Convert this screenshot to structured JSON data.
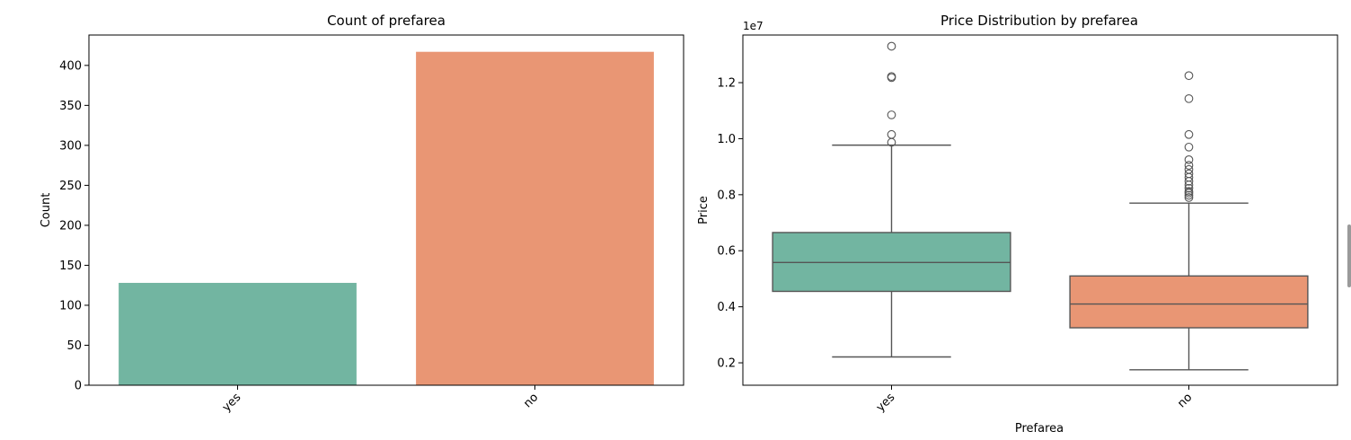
{
  "chart_data": [
    {
      "type": "bar",
      "title": "Count of prefarea",
      "xlabel": "",
      "ylabel": "Count",
      "categories": [
        "yes",
        "no"
      ],
      "values": [
        128,
        417
      ],
      "colors": [
        "#72b5a1",
        "#e99674"
      ],
      "ylim": [
        0,
        438
      ],
      "yticks": [
        0,
        50,
        100,
        150,
        200,
        250,
        300,
        350,
        400
      ],
      "grid": false
    },
    {
      "type": "box",
      "title": "Price Distribution by prefarea",
      "xlabel": "Prefarea",
      "ylabel": "Price",
      "scale_label": "1e7",
      "categories": [
        "yes",
        "no"
      ],
      "colors": [
        "#72b5a1",
        "#e99674"
      ],
      "ylim": [
        0.12,
        1.37
      ],
      "yticks": [
        0.2,
        0.4,
        0.6,
        0.8,
        1.0,
        1.2
      ],
      "ytick_labels": [
        "0.2",
        "0.4",
        "0.6",
        "0.8",
        "1.0",
        "1.2"
      ],
      "boxes": [
        {
          "category": "yes",
          "whisker_low": 0.221,
          "q1": 0.455,
          "median": 0.558,
          "q3": 0.665,
          "whisker_high": 0.977,
          "outliers": [
            0.987,
            1.015,
            1.085,
            1.218,
            1.222,
            1.33
          ]
        },
        {
          "category": "no",
          "whisker_low": 0.175,
          "q1": 0.325,
          "median": 0.41,
          "q3": 0.51,
          "whisker_high": 0.77,
          "outliers": [
            0.79,
            0.798,
            0.806,
            0.812,
            0.823,
            0.835,
            0.848,
            0.862,
            0.875,
            0.89,
            0.905,
            0.925,
            0.97,
            1.015,
            1.143,
            1.225
          ]
        }
      ],
      "grid": false
    }
  ]
}
